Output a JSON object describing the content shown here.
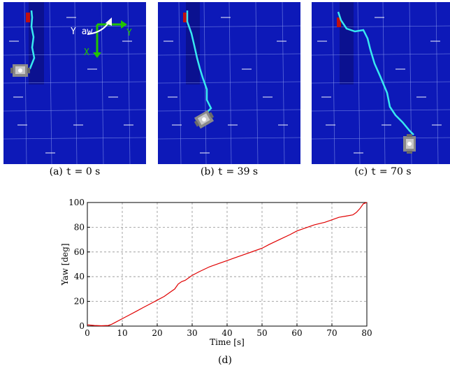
{
  "panels": [
    {
      "label": "(a)",
      "var": "t",
      "value": "= 0 s"
    },
    {
      "label": "(b)",
      "var": "t",
      "value": "= 39 s"
    },
    {
      "label": "(c)",
      "var": "t",
      "value": "= 70 s"
    }
  ],
  "axes_overlay": {
    "yaw_label": "Y aw",
    "y_label": "Y",
    "x_label": "X"
  },
  "figure_label": "(d)",
  "colors": {
    "floor": "#0d19b8",
    "strip": "#0b1190",
    "trajectory": "#38e8f0",
    "arrow": "#22c400",
    "curve": "#e00000"
  },
  "chart_data": {
    "type": "line",
    "xlabel": "Time [s]",
    "ylabel": "Yaw [deg]",
    "xlim": [
      0,
      80
    ],
    "ylim": [
      0,
      100
    ],
    "xticks": [
      0,
      10,
      20,
      30,
      40,
      50,
      60,
      70,
      80
    ],
    "yticks": [
      0,
      20,
      40,
      60,
      80,
      100
    ],
    "grid": true,
    "series": [
      {
        "x": [
          0,
          2,
          4,
          6,
          7,
          8,
          10,
          12,
          14,
          16,
          18,
          20,
          22,
          24,
          25,
          26,
          27,
          28,
          30,
          32,
          35,
          38,
          40,
          42,
          45,
          48,
          50,
          52,
          55,
          58,
          60,
          62,
          65,
          68,
          70,
          72,
          74,
          76,
          77,
          78,
          79,
          80
        ],
        "y": [
          1,
          0.5,
          0.3,
          0.5,
          1.5,
          3,
          6,
          9,
          12,
          15,
          18,
          21,
          24,
          28,
          30,
          34,
          36,
          37,
          41,
          44,
          48,
          51,
          53,
          55,
          58,
          61,
          63,
          66,
          70,
          74,
          77,
          79,
          82,
          84,
          86,
          88,
          89,
          90,
          92,
          95,
          99,
          100
        ]
      }
    ]
  }
}
